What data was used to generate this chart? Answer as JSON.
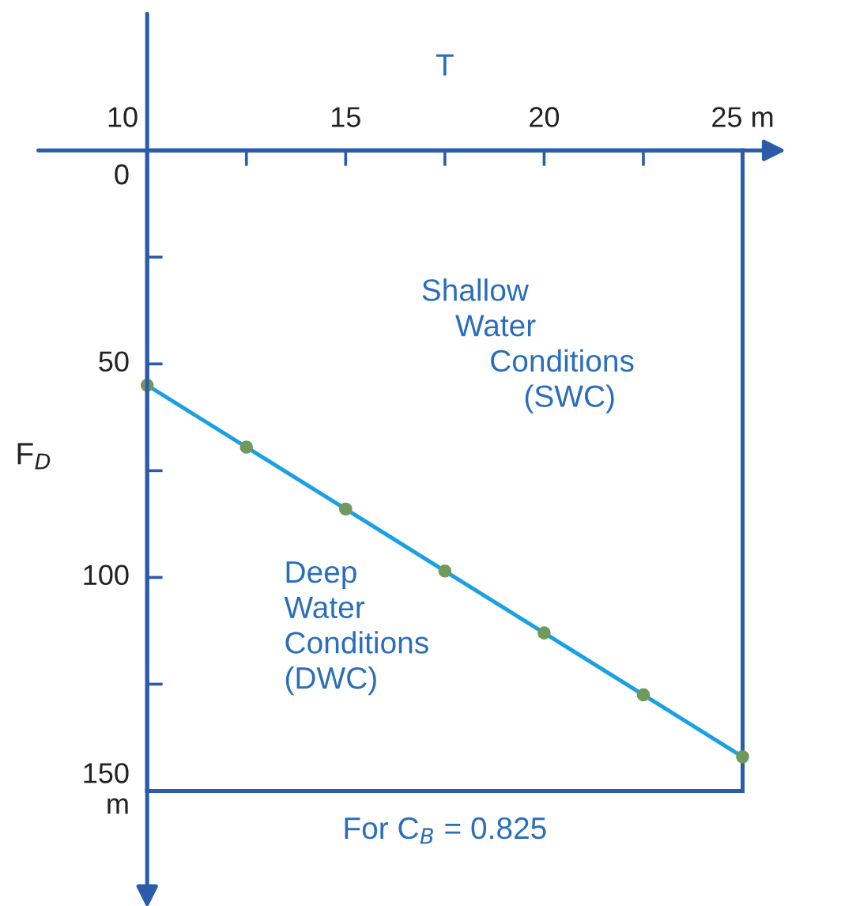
{
  "chart_data": {
    "type": "line",
    "xlabel": "T",
    "ylabel": "F$_{D}$",
    "x": [
      10,
      12.5,
      15,
      17.5,
      20,
      22.5,
      25
    ],
    "series": [
      {
        "color": "#1ba1e2",
        "values": [
          55,
          69.5,
          84,
          98.5,
          113,
          127.5,
          142
        ]
      }
    ],
    "xlim": [
      10,
      25
    ],
    "xticks": [
      10,
      {
        "value": 12.5,
        "label": null
      },
      15,
      {
        "value": 17.5,
        "label": null
      },
      20,
      {
        "value": 22.5,
        "label": null
      },
      {
        "value": 25,
        "label": "25 m"
      }
    ],
    "ylim": [
      150,
      0
    ],
    "yticks": [
      0,
      {
        "value": 25,
        "label": null
      },
      50,
      {
        "value": 75,
        "label": null
      },
      100,
      {
        "value": 125,
        "label": null
      },
      {
        "value": 150,
        "label": "150\nm"
      }
    ],
    "marker": "circle",
    "line_style": "solid",
    "grid": false,
    "legend": false,
    "annotations": [
      "Shallow\n    Water\n        Conditions\n            (SWC)",
      "Deep\nWater\nConditions\n(DWC)",
      "For C$_{B}$ = 0.825"
    ]
  }
}
